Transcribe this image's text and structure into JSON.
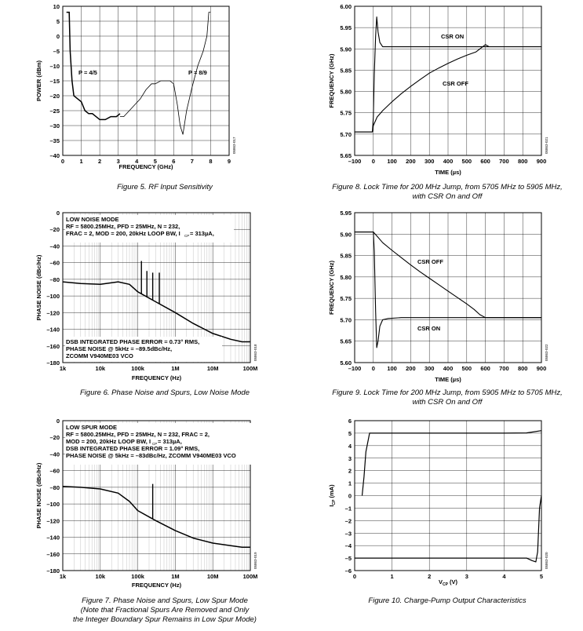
{
  "captions": [
    "Figure 5. RF Input Sensitivity",
    "Figure 6. Phase Noise and Spurs, Low Noise Mode",
    "Figure 7. Phase Noise and Spurs, Low Spur Mode",
    "(Note that Fractional Spurs Are Removed and Only",
    "the Integer Boundary Spur Remains in Low Spur Mode)",
    "Figure 8. Lock Time for 200 MHz Jump, from 5705 MHz to 5905 MHz,",
    "with CSR On and Off",
    "Figure 9. Lock Time for 200 MHz Jump, from 5905 MHz to 5705 MHz,",
    "with CSR On and Off",
    "Figure 10. Charge-Pump Output Characteristics"
  ],
  "chart_data": [
    {
      "id": "fig5",
      "type": "line",
      "xlabel": "FREQUENCY (GHz)",
      "ylabel": "POWER (dBm)",
      "xlim": [
        0,
        9
      ],
      "ylim": [
        -40,
        10
      ],
      "xticks": [
        "0",
        "1",
        "2",
        "3",
        "4",
        "5",
        "6",
        "7",
        "8",
        "9"
      ],
      "yticks": [
        "10",
        "5",
        "0",
        "–5",
        "–10",
        "–15",
        "–20",
        "–25",
        "–30",
        "–35",
        "–40"
      ],
      "grid": true,
      "code": "05863-017",
      "annotations": [
        "P = 4/5",
        "P = 8/9"
      ],
      "series": [
        {
          "x": [
            0.2,
            0.35,
            0.4,
            0.5,
            0.6,
            0.8,
            1,
            1.2,
            1.4,
            1.6,
            1.8,
            2,
            2.3,
            2.6,
            2.9,
            3.1
          ],
          "y": [
            8,
            8,
            -5,
            -15,
            -20,
            -21,
            -22,
            -25,
            -26,
            -26,
            -27,
            -28,
            -28,
            -27,
            -27,
            -26
          ]
        },
        {
          "x": [
            3.1,
            3.3,
            3.6,
            3.9,
            4.2,
            4.5,
            4.8,
            5.0,
            5.3,
            5.6,
            5.8,
            6.0,
            6.2,
            6.35,
            6.5,
            6.7,
            7.0,
            7.3,
            7.6,
            7.8,
            7.9,
            8.0
          ],
          "y": [
            -27,
            -27,
            -25,
            -23,
            -21,
            -18,
            -16,
            -16,
            -15,
            -15,
            -15,
            -16,
            -23,
            -30,
            -33,
            -25,
            -17,
            -10,
            -5,
            0,
            8,
            8
          ]
        }
      ]
    },
    {
      "id": "fig6",
      "type": "line",
      "xlabel": "FREQUENCY (Hz)",
      "ylabel": "PHASE NOISE (dBc/Hz)",
      "xscale": "log",
      "xlim": [
        1000,
        100000000
      ],
      "ylim": [
        -180,
        0
      ],
      "xticks": [
        "1k",
        "10k",
        "100k",
        "1M",
        "10M",
        "100M"
      ],
      "yticks": [
        "0",
        "–20",
        "–40",
        "–60",
        "–80",
        "–100",
        "–120",
        "–140",
        "–160",
        "–180"
      ],
      "grid": true,
      "code": "05863-018",
      "annotations": [
        "LOW NOISE MODE",
        "RF = 5800.25MHz, PFD = 25MHz, N = 232,",
        "FRAC = 2, MOD = 200, 20kHz LOOP BW, I",
        "= 313µA,",
        "DSB INTEGRATED PHASE ERROR = 0.73° RMS,",
        "PHASE NOISE @ 5kHz = –89.5dBc/Hz,",
        "ZCOMM V940ME03 VCO"
      ],
      "series": [
        {
          "x": [
            1000,
            3000,
            10000,
            30000,
            60000,
            100000,
            300000,
            1000000,
            3000000,
            10000000,
            30000000,
            60000000,
            100000000
          ],
          "y": [
            -83,
            -85,
            -86,
            -83,
            -86,
            -95,
            -107,
            -120,
            -133,
            -145,
            -152,
            -155,
            -155
          ]
        }
      ],
      "spurs": [
        {
          "x": 125000,
          "y": -58
        },
        {
          "x": 175000,
          "y": -70
        },
        {
          "x": 250000,
          "y": -72
        },
        {
          "x": 375000,
          "y": -72
        }
      ]
    },
    {
      "id": "fig7",
      "type": "line",
      "xlabel": "FREQUENCY (Hz)",
      "ylabel": "PHASE NOISE (dBc/Hz)",
      "xscale": "log",
      "xlim": [
        1000,
        100000000
      ],
      "ylim": [
        -180,
        0
      ],
      "xticks": [
        "1k",
        "10k",
        "100k",
        "1M",
        "10M",
        "100M"
      ],
      "yticks": [
        "0",
        "–20",
        "–40",
        "–60",
        "–80",
        "–100",
        "–120",
        "–140",
        "–160",
        "–180"
      ],
      "grid": true,
      "code": "05863-019",
      "annotations": [
        "LOW SPUR MODE",
        "RF = 5800.25MHz, PFD = 25MHz, N = 232, FRAC = 2,",
        "MOD = 200, 20kHz LOOP BW, I",
        "= 313µA,",
        "DSB INTEGRATED PHASE ERROR = 1.09° RMS,",
        "PHASE NOISE @ 5kHz = –83dBc/Hz, ZCOMM V940ME03 VCO"
      ],
      "series": [
        {
          "x": [
            1000,
            3000,
            10000,
            30000,
            60000,
            100000,
            300000,
            1000000,
            3000000,
            10000000,
            30000000,
            60000000,
            100000000
          ],
          "y": [
            -79,
            -80,
            -82,
            -87,
            -97,
            -108,
            -120,
            -132,
            -141,
            -147,
            -150,
            -152,
            -152
          ]
        }
      ],
      "spurs": [
        {
          "x": 250000,
          "y": -76
        }
      ]
    },
    {
      "id": "fig8",
      "type": "line",
      "xlabel": "TIME (µs)",
      "ylabel": "FREQUENCY (GHz)",
      "xlim": [
        -100,
        900
      ],
      "ylim": [
        5.65,
        6.0
      ],
      "xticks": [
        "–100",
        "0",
        "100",
        "200",
        "300",
        "400",
        "500",
        "600",
        "700",
        "800",
        "900"
      ],
      "yticks": [
        "6.00",
        "5.95",
        "5.90",
        "5.85",
        "5.80",
        "5.75",
        "5.70",
        "5.65"
      ],
      "grid": true,
      "code": "05863-021",
      "annotations": [
        "CSR ON",
        "CSR OFF"
      ],
      "series": [
        {
          "name": "CSR ON",
          "x": [
            -100,
            -5,
            0,
            5,
            12,
            18,
            25,
            35,
            50,
            80,
            150,
            300,
            500,
            700,
            900
          ],
          "y": [
            5.705,
            5.705,
            5.74,
            5.84,
            5.93,
            5.975,
            5.94,
            5.915,
            5.905,
            5.905,
            5.905,
            5.905,
            5.905,
            5.905,
            5.905
          ]
        },
        {
          "name": "CSR OFF",
          "x": [
            -100,
            -5,
            0,
            20,
            50,
            100,
            150,
            200,
            250,
            300,
            350,
            400,
            450,
            500,
            550,
            600,
            620
          ],
          "y": [
            5.705,
            5.705,
            5.72,
            5.74,
            5.755,
            5.776,
            5.795,
            5.812,
            5.828,
            5.843,
            5.855,
            5.866,
            5.876,
            5.885,
            5.893,
            5.91,
            5.905
          ]
        }
      ]
    },
    {
      "id": "fig9",
      "type": "line",
      "xlabel": "TIME (µs)",
      "ylabel": "FREQUENCY (GHz)",
      "xlim": [
        -100,
        900
      ],
      "ylim": [
        5.6,
        5.95
      ],
      "xticks": [
        "–100",
        "0",
        "100",
        "200",
        "300",
        "400",
        "500",
        "600",
        "700",
        "800",
        "900"
      ],
      "yticks": [
        "5.95",
        "5.90",
        "5.85",
        "5.80",
        "5.75",
        "5.70",
        "5.65",
        "5.60"
      ],
      "grid": true,
      "code": "05863-022",
      "annotations": [
        "CSR OFF",
        "CSR ON"
      ],
      "series": [
        {
          "name": "CSR OFF",
          "x": [
            -100,
            0,
            20,
            50,
            100,
            150,
            200,
            250,
            300,
            350,
            400,
            450,
            500,
            540,
            570,
            600,
            700,
            900
          ],
          "y": [
            5.905,
            5.905,
            5.895,
            5.88,
            5.862,
            5.845,
            5.828,
            5.812,
            5.797,
            5.782,
            5.767,
            5.752,
            5.737,
            5.724,
            5.712,
            5.705,
            5.705,
            5.705
          ]
        },
        {
          "name": "CSR ON",
          "x": [
            -100,
            0,
            5,
            12,
            18,
            25,
            35,
            50,
            80,
            150,
            300,
            500,
            700,
            900
          ],
          "y": [
            5.905,
            5.905,
            5.86,
            5.72,
            5.635,
            5.65,
            5.685,
            5.7,
            5.703,
            5.705,
            5.705,
            5.705,
            5.705,
            5.705
          ]
        }
      ]
    },
    {
      "id": "fig10",
      "type": "line",
      "xlabel": "V",
      "ylabel": "I",
      "xlim": [
        0,
        5
      ],
      "ylim": [
        -6,
        6
      ],
      "xticks": [
        "0",
        "1",
        "2",
        "3",
        "4",
        "5"
      ],
      "yticks": [
        "6",
        "5",
        "4",
        "3",
        "2",
        "1",
        "0",
        "–1",
        "–2",
        "–3",
        "–4",
        "–5",
        "–6"
      ],
      "grid": true,
      "code": "05863-020",
      "series": [
        {
          "x": [
            0.2,
            0.25,
            0.3,
            0.4,
            0.5,
            1,
            2,
            3,
            4,
            4.6,
            5
          ],
          "y": [
            0,
            1.5,
            3.5,
            5,
            5,
            5,
            5,
            5,
            5,
            5.02,
            5.2
          ]
        },
        {
          "x": [
            0,
            0.5,
            1,
            2,
            3,
            4,
            4.6,
            4.75,
            4.85,
            4.9,
            4.95,
            5
          ],
          "y": [
            -5,
            -5,
            -5,
            -5,
            -5,
            -5,
            -5,
            -5.2,
            -5.3,
            -4.5,
            -1,
            0
          ]
        }
      ]
    }
  ]
}
